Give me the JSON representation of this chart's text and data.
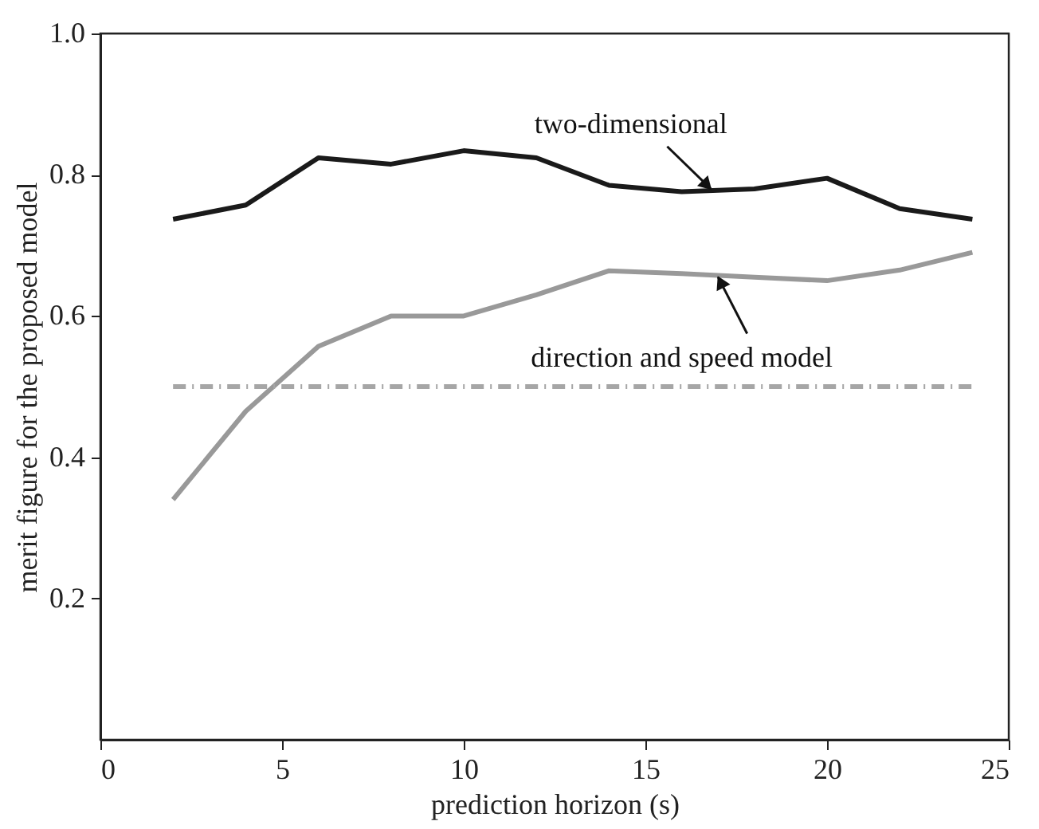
{
  "chart_data": {
    "type": "line",
    "xlabel": "prediction horizon (s)",
    "ylabel": "merit figure for the proposed model",
    "xlim": [
      0,
      25
    ],
    "xticks": [
      0,
      5,
      10,
      15,
      20,
      25
    ],
    "ylim": [
      0,
      1
    ],
    "yticks": [
      {
        "value": 0.2,
        "label": "0.2"
      },
      {
        "value": 0.4,
        "label": "0.4"
      },
      {
        "value": 0.6,
        "label": "0.6"
      },
      {
        "value": 0.8,
        "label": "0.8"
      },
      {
        "value": 1.0,
        "label": "1.0"
      }
    ],
    "x": [
      2,
      4,
      6,
      8,
      10,
      12,
      14,
      16,
      18,
      20,
      22,
      24
    ],
    "series": [
      {
        "color": "#1a1a1a",
        "values": [
          0.737,
          0.757,
          0.824,
          0.815,
          0.834,
          0.824,
          0.785,
          0.776,
          0.78,
          0.795,
          0.752,
          0.737
        ]
      },
      {
        "color": "#999999",
        "values": [
          0.34,
          0.465,
          0.557,
          0.6,
          0.6,
          0.63,
          0.664,
          0.66,
          0.655,
          0.65,
          0.665,
          0.69
        ]
      },
      {
        "color": "#a6a6a6",
        "x": [
          2,
          24
        ],
        "values": [
          0.5,
          0.5
        ],
        "line_style": "dashed"
      }
    ],
    "annotations": [
      {
        "text": "two-dimensional",
        "x": 16.8,
        "y": 0.78
      },
      {
        "text": "direction and speed model",
        "x": 17,
        "y": 0.655
      }
    ],
    "grid": false,
    "marker": "none",
    "line_style": "solid"
  }
}
